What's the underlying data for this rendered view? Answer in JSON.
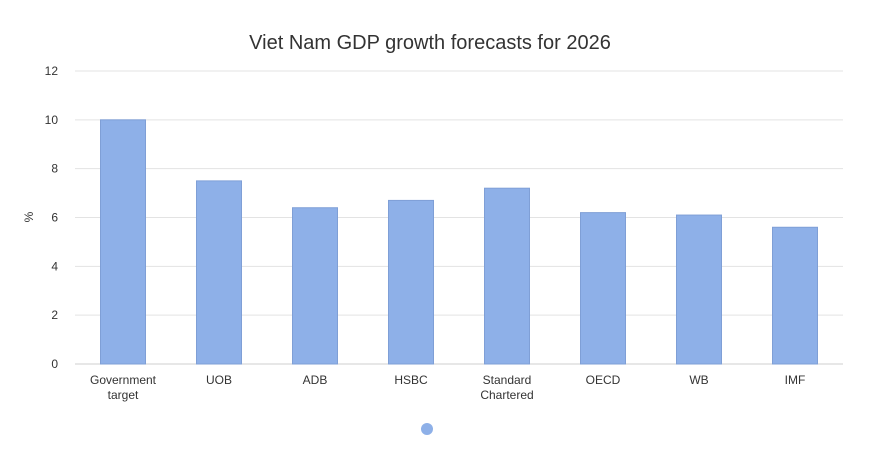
{
  "chart_data": {
    "type": "bar",
    "title": "Viet Nam GDP growth forecasts for 2026",
    "xlabel": "",
    "ylabel": "%",
    "categories": [
      [
        "Government",
        "target"
      ],
      [
        "UOB"
      ],
      [
        "ADB"
      ],
      [
        "HSBC"
      ],
      [
        "Standard",
        "Chartered"
      ],
      [
        "OECD"
      ],
      [
        "WB"
      ],
      [
        "IMF"
      ]
    ],
    "values": [
      10,
      7.5,
      6.4,
      6.7,
      7.2,
      6.2,
      6.1,
      5.6
    ],
    "ylim": [
      0,
      12
    ],
    "yticks": [
      0,
      2,
      4,
      6,
      8,
      10,
      12
    ],
    "grid": true,
    "legend_position": "bottom-center",
    "colors": {
      "bar": "#8eb0e8",
      "legend_marker": "#8eb0e8"
    }
  }
}
